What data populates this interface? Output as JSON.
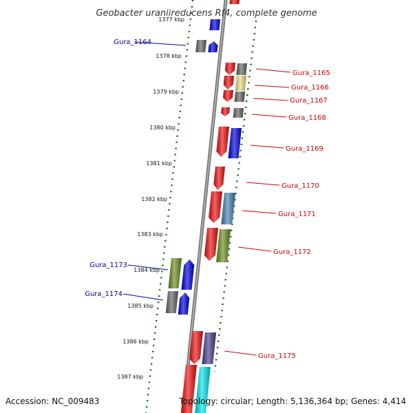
{
  "title": "Geobacter uraniireducens Rf4, complete genome",
  "accession_label": "Accession: NC_009483",
  "topology_label": "Topology: circular; Length: 5,136,364 bp; Genes: 4,414",
  "ticks": [
    "1377 kbp",
    "1378 kbp",
    "1379 kbp",
    "1380 kbp",
    "1381 kbp",
    "1382 kbp",
    "1383 kbp",
    "1384 kbp",
    "1385 kbp",
    "1386 kbp",
    "1387 kbp"
  ],
  "colors": {
    "forward_label": "#cc0000",
    "reverse_label": "#000099",
    "backbone": "#888888",
    "guide_dots": "#006600",
    "red": "#ee1111",
    "blue": "#0000dd",
    "gray": "#666666",
    "yellow": "#eedd88",
    "olive": "#6b8e23",
    "steelblue": "#4682b4",
    "slate": "#483d8b",
    "cyan": "#00e5ee"
  },
  "gene_labels": [
    {
      "id": "Gura_1164",
      "strand": "reverse"
    },
    {
      "id": "Gura_1165",
      "strand": "forward"
    },
    {
      "id": "Gura_1166",
      "strand": "forward"
    },
    {
      "id": "Gura_1167",
      "strand": "forward"
    },
    {
      "id": "Gura_1168",
      "strand": "forward"
    },
    {
      "id": "Gura_1169",
      "strand": "forward"
    },
    {
      "id": "Gura_1170",
      "strand": "forward"
    },
    {
      "id": "Gura_1171",
      "strand": "forward"
    },
    {
      "id": "Gura_1172",
      "strand": "forward"
    },
    {
      "id": "Gura_1173",
      "strand": "reverse"
    },
    {
      "id": "Gura_1174",
      "strand": "reverse"
    },
    {
      "id": "Gura_1175",
      "strand": "forward"
    }
  ]
}
